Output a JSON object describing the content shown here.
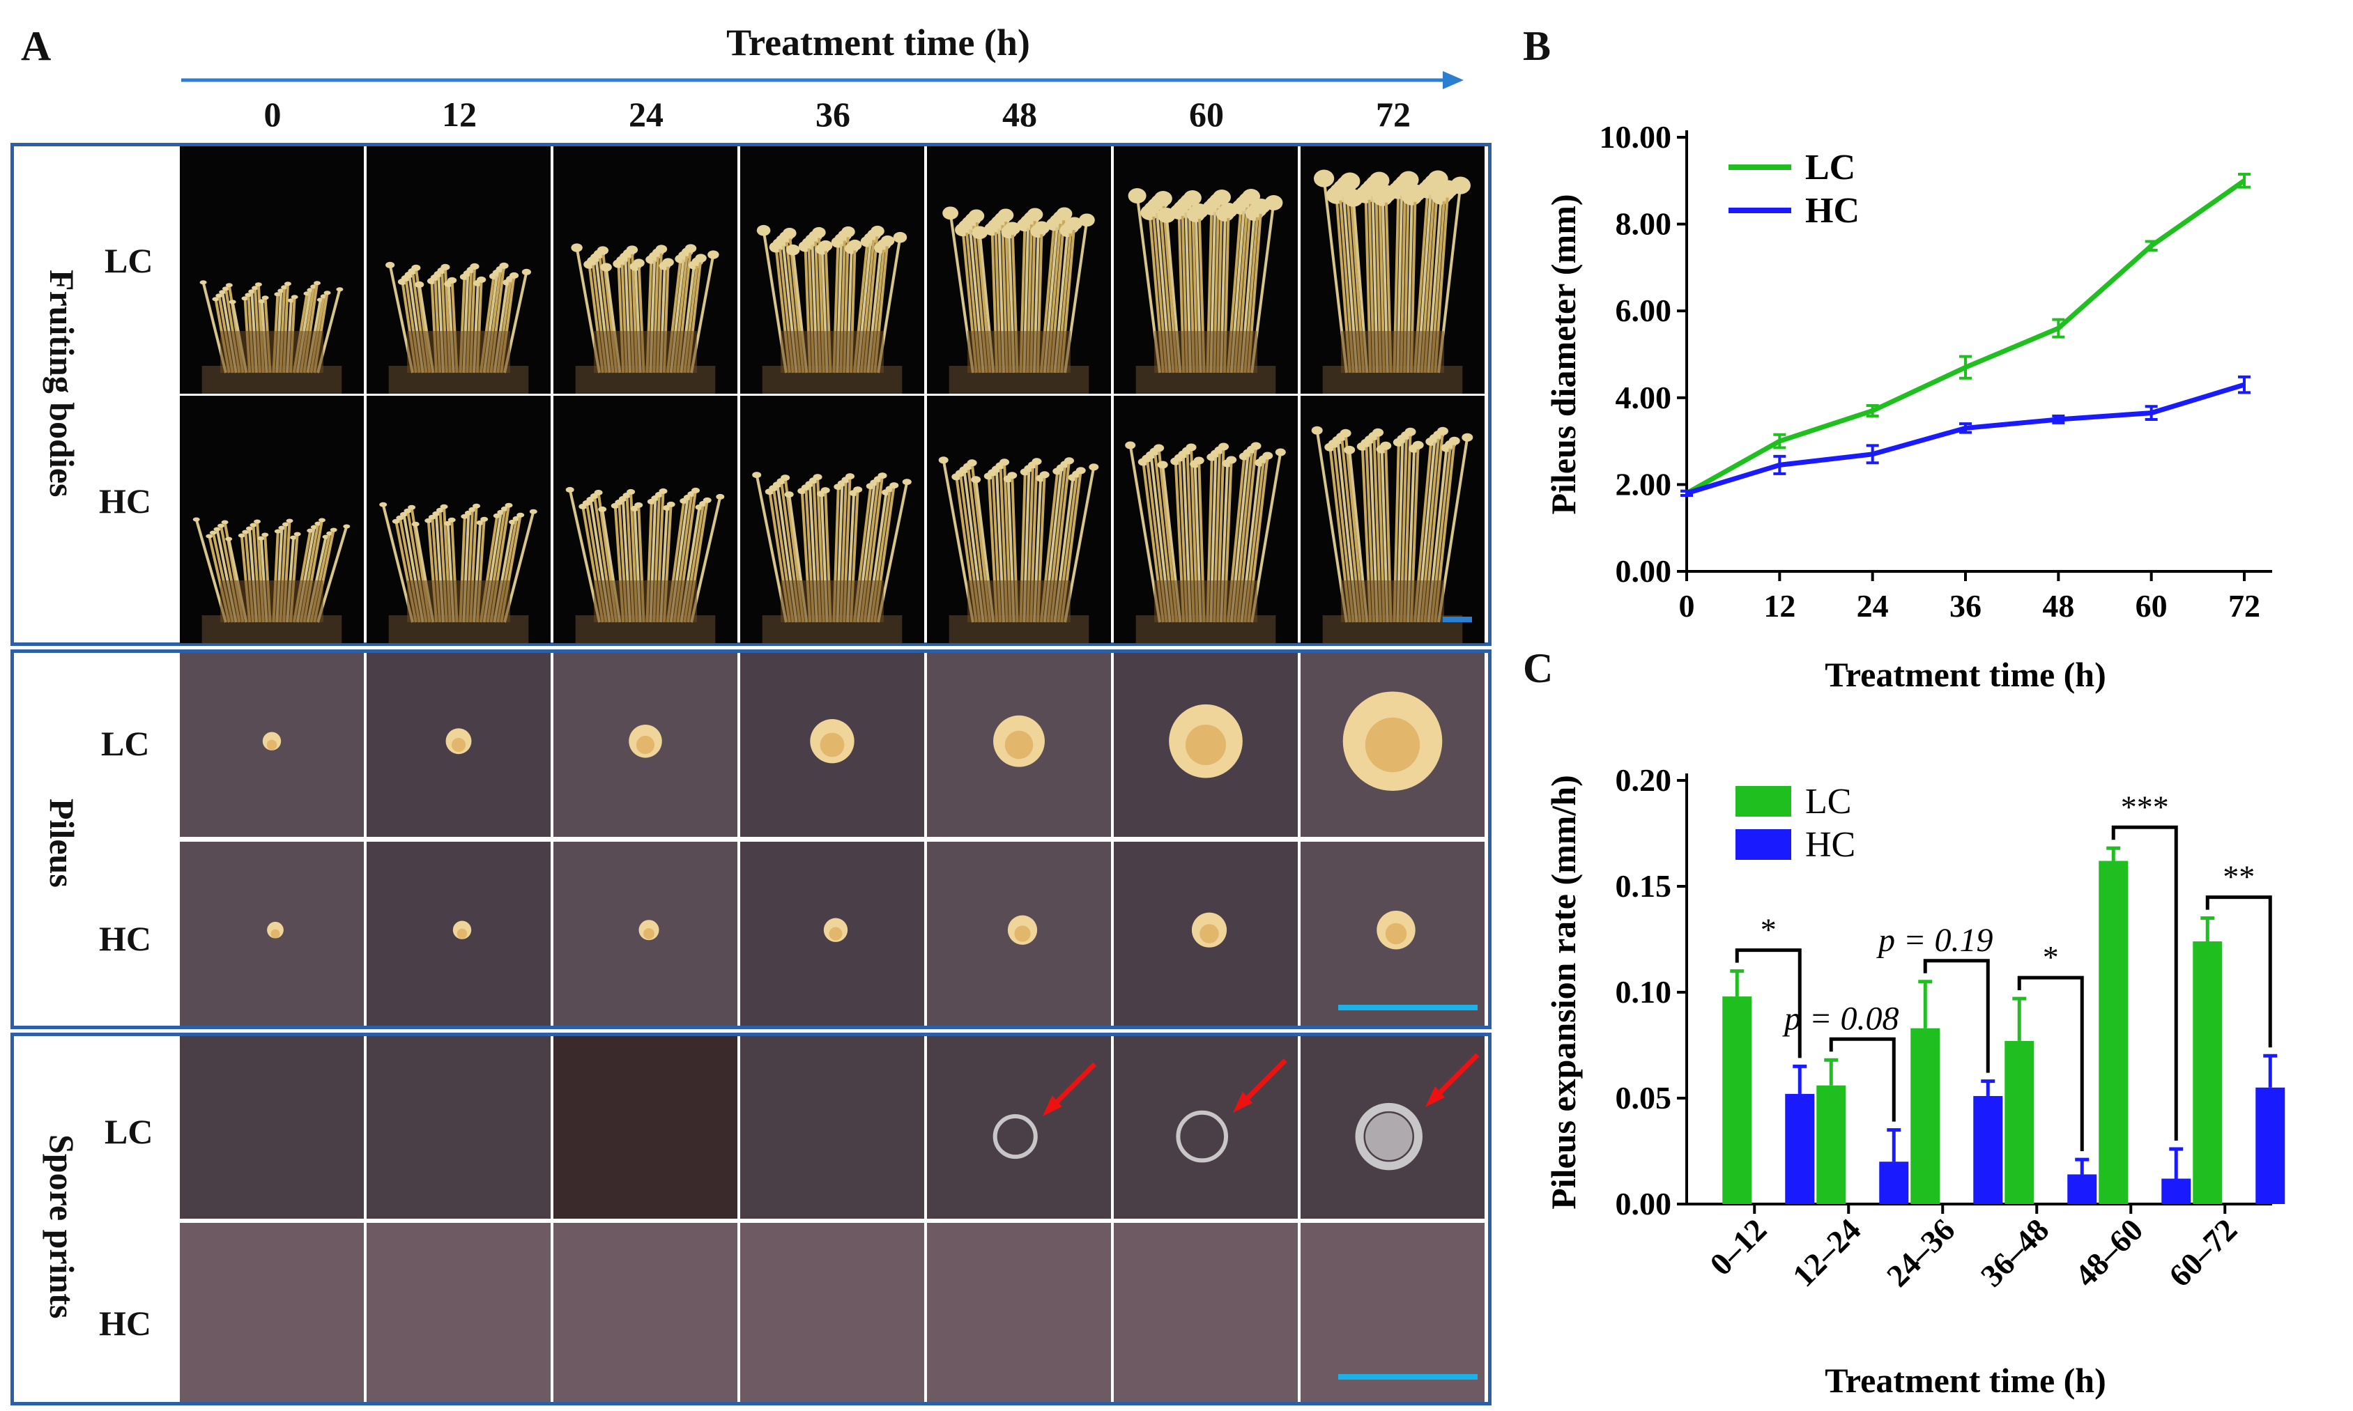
{
  "panels": {
    "a": "A",
    "b": "B",
    "c": "C"
  },
  "panel_a": {
    "title": "Treatment time (h)",
    "time_points": [
      "0",
      "12",
      "24",
      "36",
      "48",
      "60",
      "72"
    ],
    "sections": [
      {
        "label": "Fruiting bodies",
        "rows": [
          "LC",
          "HC"
        ]
      },
      {
        "label": "Pileus",
        "rows": [
          "LC",
          "HC"
        ]
      },
      {
        "label": "Spore prints",
        "rows": [
          "LC",
          "HC"
        ]
      }
    ]
  },
  "colors": {
    "lc": "#1fbf1f",
    "hc": "#1a1aff",
    "frame": "#2b5fa8",
    "scale_bar": "#1ab2e8",
    "arrow": "#ee1111"
  },
  "chart_data": [
    {
      "type": "line",
      "title": "",
      "xlabel": "Treatment time (h)",
      "ylabel": "Pileus diameter (mm)",
      "x": [
        0,
        12,
        24,
        36,
        48,
        60,
        72
      ],
      "xticks": [
        "0",
        "12",
        "24",
        "36",
        "48",
        "60",
        "72"
      ],
      "yticks": [
        "0.00",
        "2.00",
        "4.00",
        "6.00",
        "8.00",
        "10.00"
      ],
      "ylim": [
        0,
        10
      ],
      "legend": "top-left",
      "series": [
        {
          "name": "LC",
          "values": [
            1.8,
            3.0,
            3.7,
            4.7,
            5.6,
            7.5,
            9.0
          ],
          "errors": [
            0.05,
            0.15,
            0.12,
            0.25,
            0.2,
            0.1,
            0.15
          ]
        },
        {
          "name": "HC",
          "values": [
            1.8,
            2.45,
            2.7,
            3.3,
            3.5,
            3.65,
            4.3
          ],
          "errors": [
            0.05,
            0.2,
            0.2,
            0.1,
            0.08,
            0.15,
            0.18
          ]
        }
      ]
    },
    {
      "type": "bar",
      "title": "",
      "xlabel": "Treatment time (h)",
      "ylabel": "Pileus expansion rate (mm/h)",
      "categories": [
        "0–12",
        "12–24",
        "24–36",
        "36–48",
        "48–60",
        "60–72"
      ],
      "yticks": [
        "0.00",
        "0.05",
        "0.10",
        "0.15",
        "0.20"
      ],
      "ylim": [
        0,
        0.2
      ],
      "legend": "top-left",
      "series": [
        {
          "name": "LC",
          "values": [
            0.098,
            0.056,
            0.083,
            0.077,
            0.162,
            0.124
          ],
          "errors": [
            0.012,
            0.012,
            0.022,
            0.02,
            0.006,
            0.011
          ]
        },
        {
          "name": "HC",
          "values": [
            0.052,
            0.02,
            0.051,
            0.014,
            0.012,
            0.055
          ],
          "errors": [
            0.013,
            0.015,
            0.007,
            0.007,
            0.014,
            0.015
          ]
        }
      ],
      "annotations": [
        "*",
        "p = 0.08",
        "p = 0.19",
        "*",
        "***",
        "**"
      ]
    }
  ]
}
